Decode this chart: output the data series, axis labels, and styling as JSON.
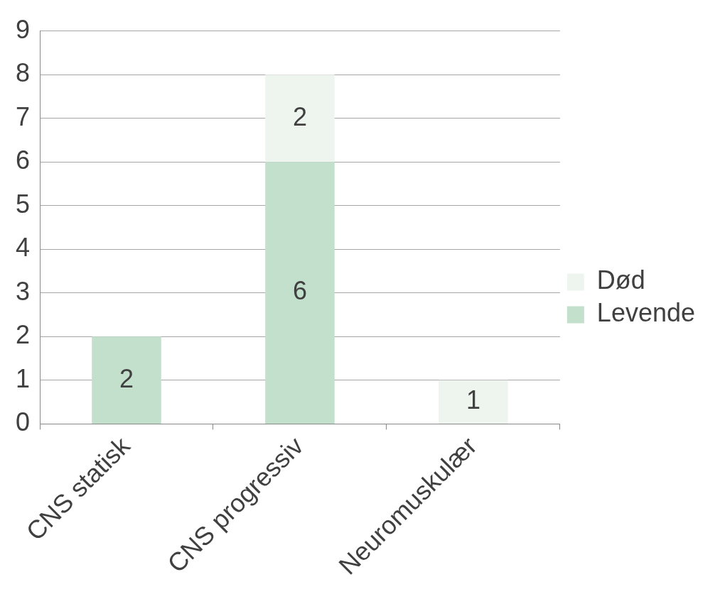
{
  "chart_data": {
    "type": "bar",
    "stacked": true,
    "categories": [
      "CNS statisk",
      "CNS progressiv",
      "Neuromuskulær"
    ],
    "series": [
      {
        "name": "Levende",
        "color": "#c3e0cc",
        "values": [
          2,
          6,
          null
        ]
      },
      {
        "name": "Død",
        "color": "#eef5ef",
        "values": [
          null,
          2,
          1
        ]
      }
    ],
    "ylim": [
      0,
      9
    ],
    "yticks": [
      0,
      1,
      2,
      3,
      4,
      5,
      6,
      7,
      8,
      9
    ],
    "grid": "y",
    "legend": "right",
    "data_labels": true
  }
}
